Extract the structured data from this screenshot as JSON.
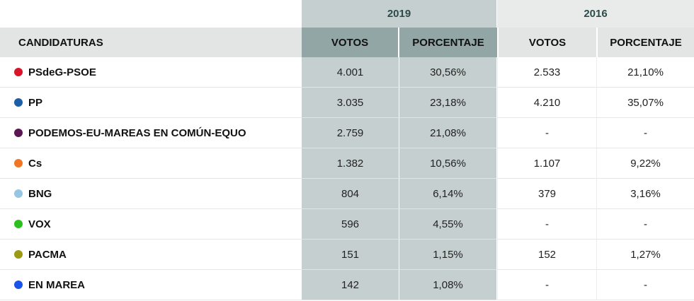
{
  "header": {
    "year_2019": "2019",
    "year_2016": "2016",
    "col_candidaturas": "CANDIDATURAS",
    "col_votos_2019": "VOTOS",
    "col_porcentaje_2019": "PORCENTAJE",
    "col_votos_2016": "VOTOS",
    "col_porcentaje_2016": "PORCENTAJE"
  },
  "rows": [
    {
      "party": "PSdeG-PSOE",
      "color": "#d9132a",
      "votes_2019": "4.001",
      "pct_2019": "30,56%",
      "votes_2016": "2.533",
      "pct_2016": "21,10%"
    },
    {
      "party": "PP",
      "color": "#1c5fa6",
      "votes_2019": "3.035",
      "pct_2019": "23,18%",
      "votes_2016": "4.210",
      "pct_2016": "35,07%"
    },
    {
      "party": "PODEMOS-EU-MAREAS EN COMÚN-EQUO",
      "color": "#5b1753",
      "votes_2019": "2.759",
      "pct_2019": "21,08%",
      "votes_2016": "-",
      "pct_2016": "-"
    },
    {
      "party": "Cs",
      "color": "#f07524",
      "votes_2019": "1.382",
      "pct_2019": "10,56%",
      "votes_2016": "1.107",
      "pct_2016": "9,22%"
    },
    {
      "party": "BNG",
      "color": "#97c6e4",
      "votes_2019": "804",
      "pct_2019": "6,14%",
      "votes_2016": "379",
      "pct_2016": "3,16%"
    },
    {
      "party": "VOX",
      "color": "#2cc01e",
      "votes_2019": "596",
      "pct_2019": "4,55%",
      "votes_2016": "-",
      "pct_2016": "-"
    },
    {
      "party": "PACMA",
      "color": "#9c9a14",
      "votes_2019": "151",
      "pct_2019": "1,15%",
      "votes_2016": "152",
      "pct_2016": "1,27%"
    },
    {
      "party": "EN MAREA",
      "color": "#1a53e8",
      "votes_2019": "142",
      "pct_2019": "1,08%",
      "votes_2016": "-",
      "pct_2016": "-"
    }
  ]
}
